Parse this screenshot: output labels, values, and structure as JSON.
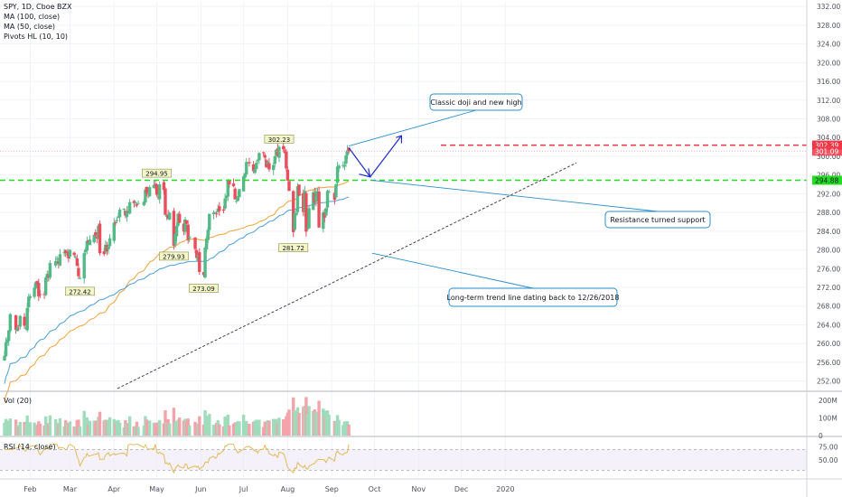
{
  "legend": {
    "title": "SPY, 1D, Cboe BZX",
    "ma100": "MA (100, close)",
    "ma50": "MA (50, close)",
    "pivots": "Pivots HL (10, 10)"
  },
  "panes": {
    "vol": "Vol (20)",
    "rsi": "RSI (14, close)"
  },
  "colors": {
    "up": "#53b987",
    "down": "#eb4d5c",
    "ma50": "#f2a23a",
    "ma100": "#4a9fd8",
    "resistance": "#f23645",
    "support": "#22dd22",
    "callout": "#2a8fcb",
    "arrow": "#1e2dc8",
    "rsi": "#e0b54a",
    "grid": "#f0f3fa",
    "axis_text": "#4c525e"
  },
  "chart_data": {
    "type": "candlestick",
    "symbol": "SPY",
    "ylim": [
      250,
      333
    ],
    "y_ticks": [
      252,
      256,
      260,
      264,
      268,
      272,
      276,
      280,
      284,
      288,
      292,
      296,
      300,
      304,
      308,
      312,
      316,
      320,
      324,
      328,
      332
    ],
    "x_ticks": [
      {
        "label": "Feb",
        "date": "2019-02-01"
      },
      {
        "label": "Mar",
        "date": "2019-03-01"
      },
      {
        "label": "Apr",
        "date": "2019-04-01"
      },
      {
        "label": "May",
        "date": "2019-05-01"
      },
      {
        "label": "Jun",
        "date": "2019-06-01"
      },
      {
        "label": "Jul",
        "date": "2019-07-01"
      },
      {
        "label": "Aug",
        "date": "2019-08-01"
      },
      {
        "label": "Sep",
        "date": "2019-09-01"
      },
      {
        "label": "Oct",
        "date": "2019-10-01"
      },
      {
        "label": "Nov",
        "date": "2019-11-01"
      },
      {
        "label": "Dec",
        "date": "2019-12-01"
      },
      {
        "label": "2020",
        "date": "2020-01-01"
      }
    ],
    "closes": [
      [
        "2019-01-14",
        257.4
      ],
      [
        "2019-01-15",
        260.3
      ],
      [
        "2019-01-16",
        260.9
      ],
      [
        "2019-01-17",
        262.8
      ],
      [
        "2019-01-18",
        266.3
      ],
      [
        "2019-01-22",
        262.9
      ],
      [
        "2019-01-23",
        263.4
      ],
      [
        "2019-01-24",
        263.7
      ],
      [
        "2019-01-25",
        265.9
      ],
      [
        "2019-01-28",
        263.8
      ],
      [
        "2019-01-29",
        263.4
      ],
      [
        "2019-01-30",
        267.6
      ],
      [
        "2019-01-31",
        270.0
      ],
      [
        "2019-02-01",
        270.1
      ],
      [
        "2019-02-04",
        271.9
      ],
      [
        "2019-02-05",
        273.1
      ],
      [
        "2019-02-06",
        272.7
      ],
      [
        "2019-02-07",
        270.1
      ],
      [
        "2019-02-08",
        270.5
      ],
      [
        "2019-02-11",
        270.6
      ],
      [
        "2019-02-12",
        274.1
      ],
      [
        "2019-02-13",
        274.9
      ],
      [
        "2019-02-14",
        274.3
      ],
      [
        "2019-02-15",
        277.2
      ],
      [
        "2019-02-19",
        277.6
      ],
      [
        "2019-02-20",
        278.1
      ],
      [
        "2019-02-21",
        277.0
      ],
      [
        "2019-02-22",
        279.1
      ],
      [
        "2019-02-25",
        279.5
      ],
      [
        "2019-02-26",
        279.3
      ],
      [
        "2019-02-27",
        279.1
      ],
      [
        "2019-02-28",
        278.2
      ],
      [
        "2019-03-01",
        280.0
      ],
      [
        "2019-03-04",
        278.9
      ],
      [
        "2019-03-05",
        278.5
      ],
      [
        "2019-03-06",
        276.6
      ],
      [
        "2019-03-07",
        274.4
      ],
      [
        "2019-03-08",
        274.0
      ],
      [
        "2019-03-11",
        279.3
      ],
      [
        "2019-03-12",
        280.1
      ],
      [
        "2019-03-13",
        281.9
      ],
      [
        "2019-03-14",
        281.6
      ],
      [
        "2019-03-15",
        282.2
      ],
      [
        "2019-03-18",
        283.2
      ],
      [
        "2019-03-19",
        283.1
      ],
      [
        "2019-03-20",
        282.4
      ],
      [
        "2019-03-21",
        285.2
      ],
      [
        "2019-03-22",
        279.3
      ],
      [
        "2019-03-25",
        279.1
      ],
      [
        "2019-03-26",
        281.1
      ],
      [
        "2019-03-27",
        279.7
      ],
      [
        "2019-03-28",
        280.7
      ],
      [
        "2019-03-29",
        282.5
      ],
      [
        "2019-04-01",
        285.8
      ],
      [
        "2019-04-02",
        285.9
      ],
      [
        "2019-04-03",
        286.4
      ],
      [
        "2019-04-04",
        287.2
      ],
      [
        "2019-04-05",
        288.6
      ],
      [
        "2019-04-08",
        288.8
      ],
      [
        "2019-04-09",
        287.3
      ],
      [
        "2019-04-10",
        288.3
      ],
      [
        "2019-04-11",
        288.2
      ],
      [
        "2019-04-12",
        290.2
      ],
      [
        "2019-04-15",
        290.0
      ],
      [
        "2019-04-16",
        290.2
      ],
      [
        "2019-04-17",
        289.5
      ],
      [
        "2019-04-18",
        290.0
      ],
      [
        "2019-04-22",
        290.3
      ],
      [
        "2019-04-23",
        292.9
      ],
      [
        "2019-04-24",
        292.2
      ],
      [
        "2019-04-25",
        292.0
      ],
      [
        "2019-04-26",
        293.4
      ],
      [
        "2019-04-29",
        293.9
      ],
      [
        "2019-04-30",
        294.0
      ],
      [
        "2019-05-01",
        291.8
      ],
      [
        "2019-05-02",
        291.2
      ],
      [
        "2019-05-03",
        294.0
      ],
      [
        "2019-05-06",
        292.8
      ],
      [
        "2019-05-07",
        287.5
      ],
      [
        "2019-05-08",
        287.5
      ],
      [
        "2019-05-09",
        286.7
      ],
      [
        "2019-05-10",
        287.9
      ],
      [
        "2019-05-13",
        280.9
      ],
      [
        "2019-05-14",
        283.4
      ],
      [
        "2019-05-15",
        285.1
      ],
      [
        "2019-05-16",
        287.7
      ],
      [
        "2019-05-17",
        285.8
      ],
      [
        "2019-05-20",
        283.9
      ],
      [
        "2019-05-21",
        286.5
      ],
      [
        "2019-05-22",
        285.6
      ],
      [
        "2019-05-23",
        282.1
      ],
      [
        "2019-05-24",
        282.8
      ],
      [
        "2019-05-28",
        280.2
      ],
      [
        "2019-05-29",
        278.3
      ],
      [
        "2019-05-30",
        279.0
      ],
      [
        "2019-05-31",
        275.3
      ],
      [
        "2019-06-03",
        274.6
      ],
      [
        "2019-06-04",
        280.5
      ],
      [
        "2019-06-05",
        282.5
      ],
      [
        "2019-06-06",
        284.3
      ],
      [
        "2019-06-07",
        287.7
      ],
      [
        "2019-06-10",
        288.0
      ],
      [
        "2019-06-11",
        288.1
      ],
      [
        "2019-06-12",
        287.6
      ],
      [
        "2019-06-13",
        288.8
      ],
      [
        "2019-06-14",
        288.3
      ],
      [
        "2019-06-17",
        288.4
      ],
      [
        "2019-06-18",
        291.0
      ],
      [
        "2019-06-19",
        291.6
      ],
      [
        "2019-06-20",
        294.9
      ],
      [
        "2019-06-21",
        294.0
      ],
      [
        "2019-06-24",
        293.6
      ],
      [
        "2019-06-25",
        290.8
      ],
      [
        "2019-06-26",
        290.5
      ],
      [
        "2019-06-27",
        291.5
      ],
      [
        "2019-06-28",
        293.0
      ],
      [
        "2019-07-01",
        295.7
      ],
      [
        "2019-07-02",
        296.4
      ],
      [
        "2019-07-03",
        298.8
      ],
      [
        "2019-07-05",
        298.5
      ],
      [
        "2019-07-08",
        296.8
      ],
      [
        "2019-07-09",
        297.2
      ],
      [
        "2019-07-10",
        298.6
      ],
      [
        "2019-07-11",
        299.3
      ],
      [
        "2019-07-12",
        300.7
      ],
      [
        "2019-07-15",
        300.8
      ],
      [
        "2019-07-16",
        299.7
      ],
      [
        "2019-07-17",
        297.7
      ],
      [
        "2019-07-18",
        298.8
      ],
      [
        "2019-07-19",
        297.2
      ],
      [
        "2019-07-22",
        298.1
      ],
      [
        "2019-07-23",
        300.0
      ],
      [
        "2019-07-24",
        301.4
      ],
      [
        "2019-07-25",
        300.0
      ],
      [
        "2019-07-26",
        302.0
      ],
      [
        "2019-07-29",
        301.5
      ],
      [
        "2019-07-30",
        300.7
      ],
      [
        "2019-07-31",
        297.4
      ],
      [
        "2019-08-01",
        294.8
      ],
      [
        "2019-08-02",
        292.6
      ],
      [
        "2019-08-05",
        283.8
      ],
      [
        "2019-08-06",
        287.8
      ],
      [
        "2019-08-07",
        287.9
      ],
      [
        "2019-08-08",
        293.6
      ],
      [
        "2019-08-09",
        291.6
      ],
      [
        "2019-08-12",
        288.1
      ],
      [
        "2019-08-13",
        292.6
      ],
      [
        "2019-08-14",
        283.9
      ],
      [
        "2019-08-15",
        284.6
      ],
      [
        "2019-08-16",
        288.9
      ],
      [
        "2019-08-19",
        292.3
      ],
      [
        "2019-08-20",
        290.1
      ],
      [
        "2019-08-21",
        292.5
      ],
      [
        "2019-08-22",
        292.3
      ],
      [
        "2019-08-23",
        284.8
      ],
      [
        "2019-08-26",
        288.0
      ],
      [
        "2019-08-27",
        286.9
      ],
      [
        "2019-08-28",
        288.9
      ],
      [
        "2019-08-29",
        292.6
      ],
      [
        "2019-08-30",
        292.5
      ],
      [
        "2019-09-03",
        290.7
      ],
      [
        "2019-09-04",
        294.0
      ],
      [
        "2019-09-05",
        297.8
      ],
      [
        "2019-09-06",
        298.0
      ],
      [
        "2019-09-09",
        298.1
      ],
      [
        "2019-09-10",
        298.1
      ],
      [
        "2019-09-11",
        300.2
      ],
      [
        "2019-09-12",
        301.3
      ],
      [
        "2019-09-13",
        301.1
      ]
    ],
    "price_labels": [
      {
        "label": "302.39",
        "value": 302.39,
        "color": "#f23645"
      },
      {
        "label": "301.09",
        "value": 301.09,
        "color": "#f23645"
      },
      {
        "label": "294.88",
        "value": 294.88,
        "color": "#22dd22"
      }
    ],
    "pivots": [
      {
        "label": "272.42",
        "date": "2019-03-08",
        "value": 272.42,
        "side": "low"
      },
      {
        "label": "294.95",
        "date": "2019-05-01",
        "value": 294.95,
        "side": "high"
      },
      {
        "label": "279.93",
        "date": "2019-05-13",
        "value": 279.93,
        "side": "low"
      },
      {
        "label": "273.09",
        "date": "2019-06-03",
        "value": 273.09,
        "side": "low"
      },
      {
        "label": "302.23",
        "date": "2019-07-26",
        "value": 302.23,
        "side": "high"
      },
      {
        "label": "281.72",
        "date": "2019-08-05",
        "value": 281.72,
        "side": "low"
      }
    ],
    "vol_axis": {
      "labels": [
        "200M",
        "100M",
        "0"
      ],
      "values": [
        200,
        100,
        0
      ]
    },
    "rsi_axis": {
      "labels": [
        "75.00",
        "50.00"
      ],
      "values": [
        75,
        50
      ],
      "band": [
        30,
        70
      ]
    }
  },
  "annotations": {
    "doji": "Classic doji and new high",
    "support": "Resistance turned support",
    "trendline": "Long-term trend line dating back to 12/26/2018"
  }
}
